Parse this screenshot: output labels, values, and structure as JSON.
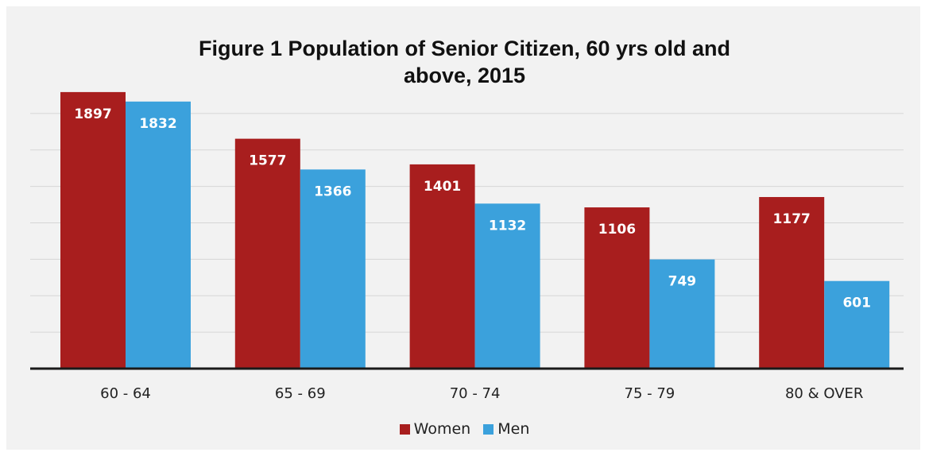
{
  "chart_data": {
    "type": "bar",
    "title_line1": "Figure 1 Population of Senior Citizen, 60 yrs old and",
    "title_line2": "above, 2015",
    "categories": [
      "60 - 64",
      "65 - 69",
      "70 - 74",
      "75 - 79",
      "80 & OVER"
    ],
    "series": [
      {
        "name": "Women",
        "color": "#a81e1e",
        "values": [
          1897,
          1577,
          1401,
          1106,
          1177
        ]
      },
      {
        "name": "Men",
        "color": "#3ba1dc",
        "values": [
          1832,
          1366,
          1132,
          749,
          601
        ]
      }
    ],
    "ylim": [
      0,
      2000
    ],
    "grid": true,
    "legend_position": "bottom",
    "data_labels": true
  }
}
